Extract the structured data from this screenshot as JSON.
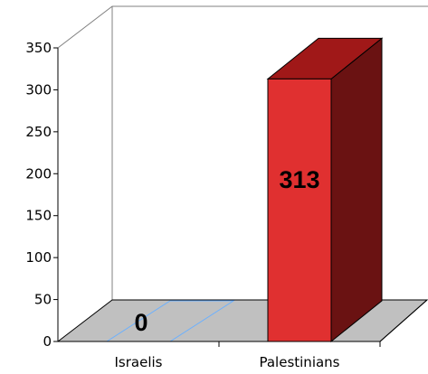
{
  "chart_data": {
    "type": "bar",
    "style": "3d",
    "categories": [
      "Israelis",
      "Palestinians"
    ],
    "series": [
      {
        "values": [
          0,
          313
        ]
      }
    ],
    "data_labels": [
      "0",
      "313"
    ],
    "yticks": [
      0,
      50,
      100,
      150,
      200,
      250,
      300,
      350
    ],
    "ytick_labels": [
      "0",
      "50",
      "100",
      "150",
      "200",
      "250",
      "300",
      "350"
    ],
    "ylim": [
      0,
      350
    ],
    "grid": false,
    "colors": {
      "bar_front": "#e03030",
      "bar_top": "#a01818",
      "bar_side": "#6a1212",
      "floor": "#c0c0c0",
      "zero_bar_outline": "#6ab0ff",
      "frame": "#808080",
      "axis": "#000000"
    }
  }
}
